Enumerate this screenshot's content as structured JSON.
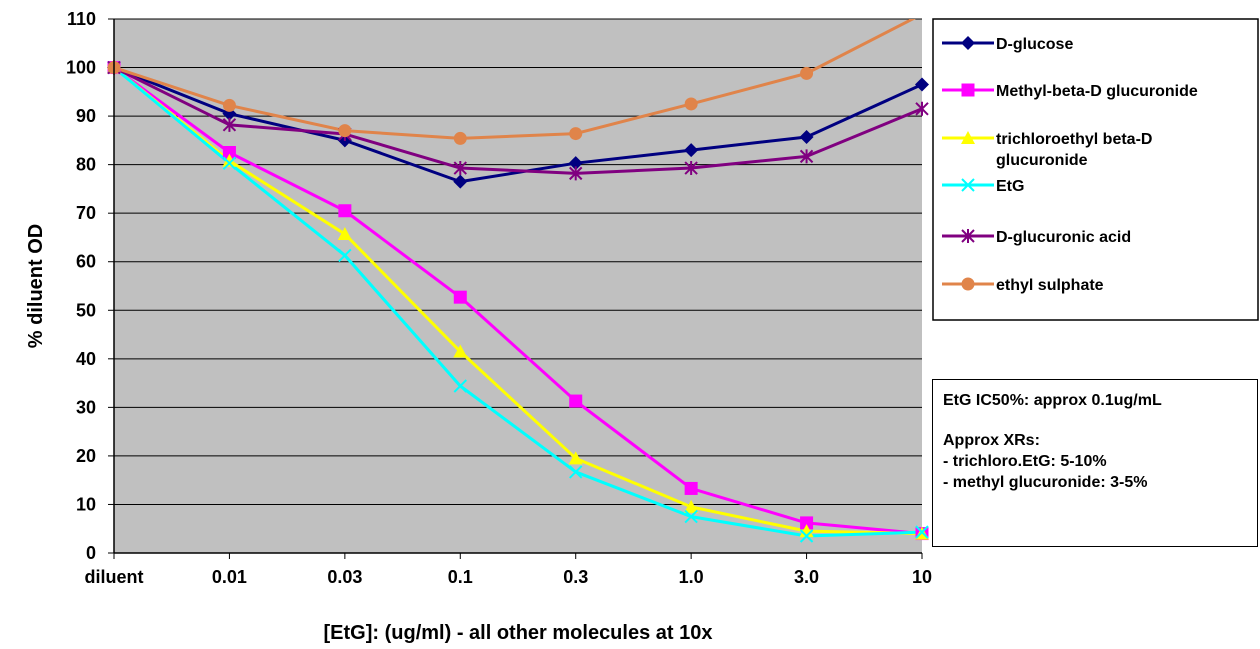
{
  "chart_data": {
    "type": "line",
    "categories": [
      "diluent",
      "0.01",
      "0.03",
      "0.1",
      "0.3",
      "1.0",
      "3.0",
      "10"
    ],
    "xlabel": "[EtG]: (ug/ml) - all other molecules at 10x",
    "ylabel": "% diluent OD",
    "ylim": [
      0,
      110
    ],
    "yticks": [
      0,
      10,
      20,
      30,
      40,
      50,
      60,
      70,
      80,
      90,
      100,
      110
    ],
    "grid": "horizontal",
    "plot_background": "#C0C0C0",
    "legend_position": "right",
    "series": [
      {
        "name": "D-glucose",
        "color": "#000080",
        "marker": "diamond",
        "values": [
          100,
          90.5,
          85,
          76.5,
          80.3,
          83,
          85.7,
          96.5
        ]
      },
      {
        "name": "Methyl-beta-D glucuronide",
        "color": "#FF00FF",
        "marker": "square",
        "values": [
          100,
          82.5,
          70.5,
          52.7,
          31.3,
          13.3,
          6.2,
          4
        ]
      },
      {
        "name": "trichloroethyl beta-D glucuronide",
        "color": "#FFFF00",
        "marker": "triangle",
        "values": [
          100,
          80.8,
          65.7,
          41.5,
          19.5,
          9.5,
          4.5,
          4
        ]
      },
      {
        "name": "EtG",
        "color": "#00FFFF",
        "marker": "x",
        "values": [
          100,
          80.3,
          61.3,
          34.4,
          16.7,
          7.5,
          3.5,
          4.3
        ]
      },
      {
        "name": "D-glucuronic acid",
        "color": "#800080",
        "marker": "star",
        "values": [
          100,
          88.2,
          86.3,
          79.3,
          78.2,
          79.3,
          81.7,
          91.5
        ]
      },
      {
        "name": "ethyl sulphate",
        "color": "#E0844A",
        "marker": "circle",
        "values": [
          100,
          92.2,
          87,
          85.4,
          86.4,
          92.5,
          98.8,
          111
        ]
      }
    ]
  },
  "legend_labels": [
    [
      "D-glucose"
    ],
    [
      "Methyl-beta-D glucuronide"
    ],
    [
      "trichloroethyl beta-D",
      "glucuronide"
    ],
    [
      "EtG"
    ],
    [
      "D-glucuronic acid"
    ],
    [
      "ethyl sulphate"
    ]
  ],
  "notes": {
    "ic50": "EtG IC50%: approx 0.1ug/mL",
    "xr_title": "Approx XRs:",
    "xr_line1": "- trichloro.EtG: 5-10%",
    "xr_line2": "- methyl glucuronide: 3-5%"
  }
}
